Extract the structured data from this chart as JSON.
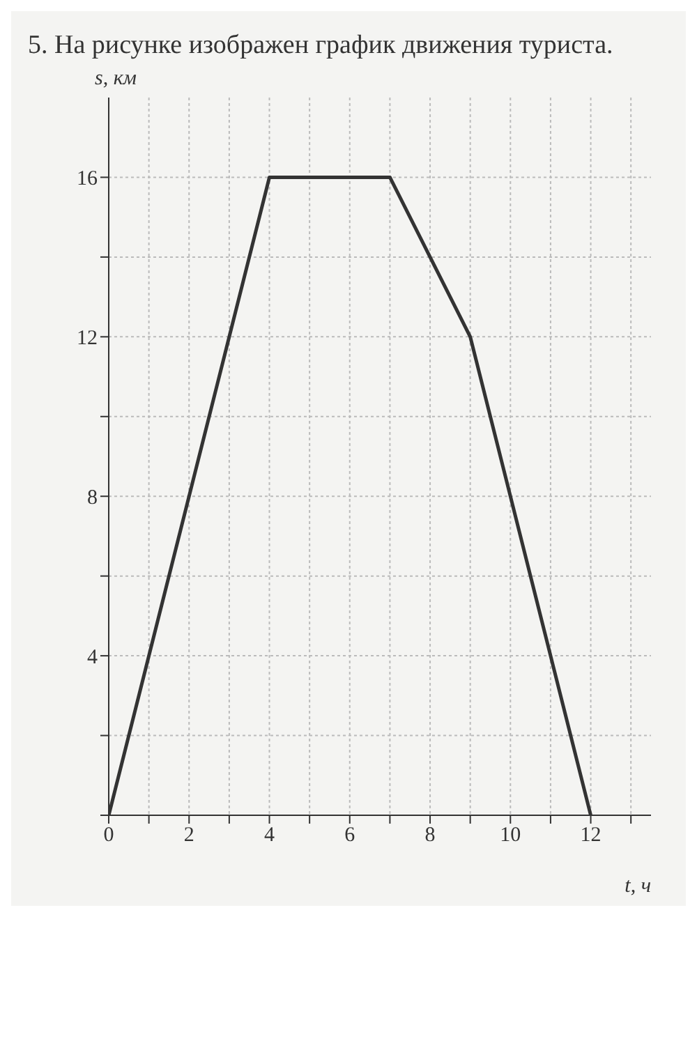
{
  "chart_data": {
    "type": "line",
    "title": "5. На рисунке изображен график движения туриста.",
    "xlabel": "t, ч",
    "ylabel": "s, км",
    "x": [
      0,
      4,
      7,
      9,
      12
    ],
    "series": [
      {
        "color": "#333333",
        "values": [
          0,
          16,
          16,
          12,
          0
        ]
      }
    ],
    "xlim": [
      0,
      13.5
    ],
    "ylim": [
      0,
      18
    ],
    "xticks": [
      0,
      {
        "value": 1,
        "label": null
      },
      2,
      {
        "value": 3,
        "label": null
      },
      4,
      {
        "value": 5,
        "label": null
      },
      6,
      {
        "value": 7,
        "label": null
      },
      8,
      {
        "value": 9,
        "label": null
      },
      10,
      {
        "value": 11,
        "label": null
      },
      12,
      {
        "value": 13,
        "label": null
      }
    ],
    "yticks": [
      {
        "value": 0,
        "label": null
      },
      {
        "value": 2,
        "label": null
      },
      4,
      {
        "value": 6,
        "label": null
      },
      8,
      {
        "value": 10,
        "label": null
      },
      12,
      {
        "value": 14,
        "label": null
      },
      16
    ],
    "grid": true,
    "marker": "none",
    "line_style": "solid"
  }
}
